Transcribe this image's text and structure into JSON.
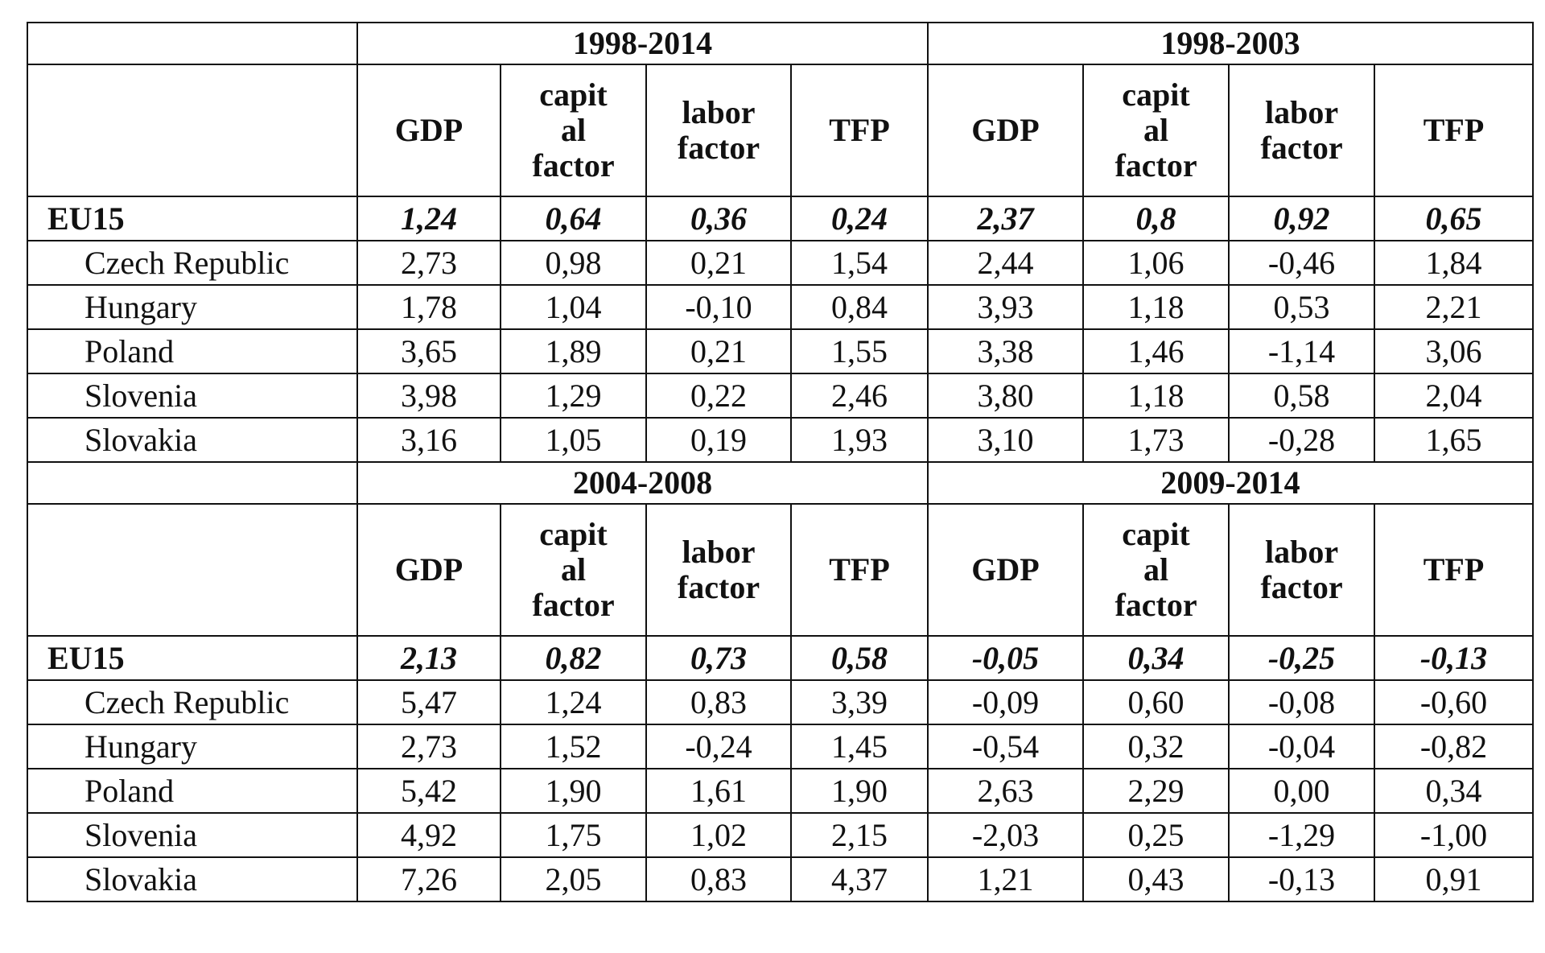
{
  "blocks": [
    {
      "periods": [
        "1998-2014",
        "1998-2003"
      ],
      "columns": [
        [
          "GDP"
        ],
        [
          "capit",
          "al",
          "factor"
        ],
        [
          "labor",
          "factor"
        ],
        [
          "TFP"
        ],
        [
          "GDP"
        ],
        [
          "capit",
          "al",
          "factor"
        ],
        [
          "labor",
          "factor"
        ],
        [
          "TFP"
        ]
      ],
      "rows": [
        {
          "label": "EU15",
          "values": [
            "1,24",
            "0,64",
            "0,36",
            "0,24",
            "2,37",
            "0,8",
            "0,92",
            "0,65"
          ]
        },
        {
          "label": "Czech Republic",
          "values": [
            "2,73",
            "0,98",
            "0,21",
            "1,54",
            "2,44",
            "1,06",
            "-0,46",
            "1,84"
          ]
        },
        {
          "label": "Hungary",
          "values": [
            "1,78",
            "1,04",
            "-0,10",
            "0,84",
            "3,93",
            "1,18",
            "0,53",
            "2,21"
          ]
        },
        {
          "label": "Poland",
          "values": [
            "3,65",
            "1,89",
            "0,21",
            "1,55",
            "3,38",
            "1,46",
            "-1,14",
            "3,06"
          ]
        },
        {
          "label": "Slovenia",
          "values": [
            "3,98",
            "1,29",
            "0,22",
            "2,46",
            "3,80",
            "1,18",
            "0,58",
            "2,04"
          ]
        },
        {
          "label": "Slovakia",
          "values": [
            "3,16",
            "1,05",
            "0,19",
            "1,93",
            "3,10",
            "1,73",
            "-0,28",
            "1,65"
          ]
        }
      ]
    },
    {
      "periods": [
        "2004-2008",
        "2009-2014"
      ],
      "columns": [
        [
          "GDP"
        ],
        [
          "capit",
          "al",
          "factor"
        ],
        [
          "labor",
          "factor"
        ],
        [
          "TFP"
        ],
        [
          "GDP"
        ],
        [
          "capit",
          "al",
          "factor"
        ],
        [
          "labor",
          "factor"
        ],
        [
          "TFP"
        ]
      ],
      "rows": [
        {
          "label": "EU15",
          "values": [
            "2,13",
            "0,82",
            "0,73",
            "0,58",
            "-0,05",
            "0,34",
            "-0,25",
            "-0,13"
          ]
        },
        {
          "label": "Czech Republic",
          "values": [
            "5,47",
            "1,24",
            "0,83",
            "3,39",
            "-0,09",
            "0,60",
            "-0,08",
            "-0,60"
          ]
        },
        {
          "label": "Hungary",
          "values": [
            "2,73",
            "1,52",
            "-0,24",
            "1,45",
            "-0,54",
            "0,32",
            "-0,04",
            "-0,82"
          ]
        },
        {
          "label": "Poland",
          "values": [
            "5,42",
            "1,90",
            "1,61",
            "1,90",
            "2,63",
            "2,29",
            "0,00",
            "0,34"
          ]
        },
        {
          "label": "Slovenia",
          "values": [
            "4,92",
            "1,75",
            "1,02",
            "2,15",
            "-2,03",
            "0,25",
            "-1,29",
            "-1,00"
          ]
        },
        {
          "label": "Slovakia",
          "values": [
            "7,26",
            "2,05",
            "0,83",
            "4,37",
            "1,21",
            "0,43",
            "-0,13",
            "0,91"
          ]
        }
      ]
    }
  ]
}
